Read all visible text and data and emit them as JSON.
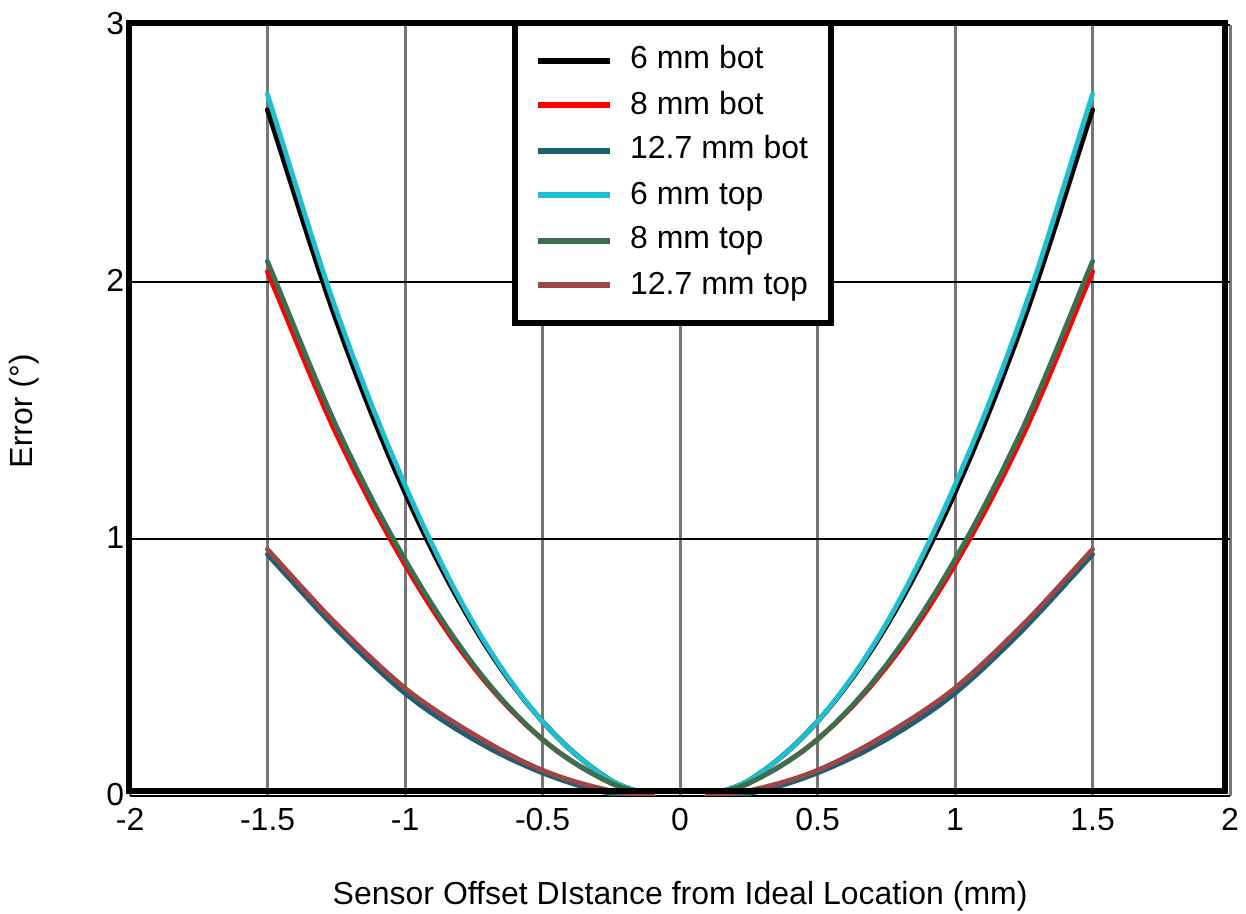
{
  "chart_data": {
    "type": "line",
    "xlabel": "Sensor Offset DIstance from Ideal Location (mm)",
    "ylabel": "Error (°)",
    "x": [
      -1.5,
      -1.25,
      -1,
      -0.75,
      -0.5,
      -0.25,
      -0.1,
      0,
      0.1,
      0.25,
      0.5,
      0.75,
      1,
      1.25,
      1.5
    ],
    "series": [
      {
        "name": "6 mm bot",
        "color": "#000000",
        "values": [
          2.67,
          1.85,
          1.18,
          0.66,
          0.29,
          0.06,
          0,
          null,
          0,
          0.06,
          0.29,
          0.66,
          1.18,
          1.85,
          2.67
        ]
      },
      {
        "name": "8 mm bot",
        "color": "#ff0000",
        "values": [
          2.04,
          1.41,
          0.9,
          0.5,
          0.22,
          0.05,
          0,
          null,
          0,
          0.05,
          0.22,
          0.5,
          0.9,
          1.41,
          2.04
        ]
      },
      {
        "name": "12.7 mm bot",
        "color": "#1f5f73",
        "values": [
          0.94,
          0.65,
          0.4,
          0.22,
          0.09,
          0.01,
          0,
          null,
          0,
          0.01,
          0.09,
          0.22,
          0.4,
          0.65,
          0.94
        ]
      },
      {
        "name": "6 mm top",
        "color": "#1fbfcf",
        "values": [
          2.73,
          1.89,
          1.21,
          0.67,
          0.29,
          0.06,
          0,
          null,
          0,
          0.06,
          0.29,
          0.67,
          1.21,
          1.89,
          2.73
        ]
      },
      {
        "name": "8 mm top",
        "color": "#3a7050",
        "values": [
          2.08,
          1.44,
          0.92,
          0.51,
          0.22,
          0.05,
          0,
          null,
          0,
          0.05,
          0.22,
          0.51,
          0.92,
          1.44,
          2.08
        ]
      },
      {
        "name": "12.7 mm top",
        "color": "#a04545",
        "values": [
          0.96,
          0.67,
          0.42,
          0.24,
          0.1,
          0.02,
          0,
          null,
          0,
          0.02,
          0.1,
          0.24,
          0.42,
          0.67,
          0.96
        ]
      }
    ],
    "xlim": [
      -2,
      2
    ],
    "xticks": [
      -2,
      -1.5,
      -1,
      -0.5,
      0,
      0.5,
      1,
      1.5,
      2
    ],
    "ylim": [
      0,
      3
    ],
    "yticks": [
      0,
      1,
      2,
      3
    ],
    "grid": true,
    "legend": "top",
    "marker": "none",
    "line_style": "solid"
  }
}
